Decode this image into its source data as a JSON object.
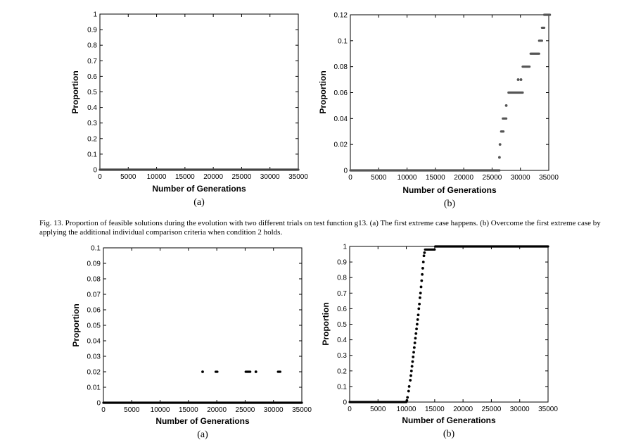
{
  "caption": "Fig. 13.   Proportion of feasible solutions during the evolution with two different trials on test function g13. (a) The first extreme case happens. (b) Overcome the first extreme case by applying the additional individual comparison criteria when condition 2 holds.",
  "chart_data": [
    {
      "type": "scatter",
      "panel_label": "(a)",
      "xlabel": "Number of Generations",
      "ylabel": "Proportion",
      "xlim": [
        0,
        35000
      ],
      "ylim": [
        0,
        1
      ],
      "xticks": [
        0,
        5000,
        10000,
        15000,
        20000,
        25000,
        30000,
        35000
      ],
      "yticks": [
        0,
        0.1,
        0.2,
        0.3,
        0.4,
        0.5,
        0.6,
        0.7,
        0.8,
        0.9,
        1
      ],
      "ytick_labels": [
        "0",
        "0.1",
        "0.2",
        "0.3",
        "0.4",
        "0.5",
        "0.6",
        "0.7",
        "0.8",
        "0.9",
        "1"
      ],
      "marker_color": "#444444",
      "segments": [
        {
          "x0": 0,
          "x1": 35000,
          "y": 0
        }
      ],
      "points": []
    },
    {
      "type": "scatter",
      "panel_label": "(b)",
      "xlabel": "Number of Generations",
      "ylabel": "Proportion",
      "xlim": [
        0,
        35000
      ],
      "ylim": [
        0,
        0.12
      ],
      "xticks": [
        0,
        5000,
        10000,
        15000,
        20000,
        25000,
        30000,
        35000
      ],
      "yticks": [
        0,
        0.02,
        0.04,
        0.06,
        0.08,
        0.1,
        0.12
      ],
      "ytick_labels": [
        "0",
        "0.02",
        "0.04",
        "0.06",
        "0.08",
        "0.1",
        "0.12"
      ],
      "marker_color": "#555555",
      "segments": [
        {
          "x0": 0,
          "x1": 26300,
          "y": 0
        },
        {
          "x0": 26600,
          "x1": 27000,
          "y": 0.03
        },
        {
          "x0": 26900,
          "x1": 27500,
          "y": 0.04
        },
        {
          "x0": 27900,
          "x1": 30400,
          "y": 0.06
        },
        {
          "x0": 30400,
          "x1": 31600,
          "y": 0.08
        },
        {
          "x0": 31800,
          "x1": 33300,
          "y": 0.09
        },
        {
          "x0": 33300,
          "x1": 33800,
          "y": 0.1
        },
        {
          "x0": 33800,
          "x1": 34200,
          "y": 0.11
        },
        {
          "x0": 34200,
          "x1": 35200,
          "y": 0.12
        }
      ],
      "points": [
        {
          "x": 26300,
          "y": 0.01
        },
        {
          "x": 26400,
          "y": 0.02
        },
        {
          "x": 27500,
          "y": 0.05
        },
        {
          "x": 29600,
          "y": 0.07
        },
        {
          "x": 30100,
          "y": 0.07
        }
      ]
    },
    {
      "type": "scatter",
      "panel_label": "(a)",
      "xlabel": "Number of Generations",
      "ylabel": "Proportion",
      "xlim": [
        0,
        35000
      ],
      "ylim": [
        0,
        0.1
      ],
      "xticks": [
        0,
        5000,
        10000,
        15000,
        20000,
        25000,
        30000,
        35000
      ],
      "yticks": [
        0,
        0.01,
        0.02,
        0.03,
        0.04,
        0.05,
        0.06,
        0.07,
        0.08,
        0.09,
        0.1
      ],
      "ytick_labels": [
        "0",
        "0.01",
        "0.02",
        "0.03",
        "0.04",
        "0.05",
        "0.06",
        "0.07",
        "0.08",
        "0.09",
        "0.1"
      ],
      "marker_color": "#000000",
      "segments": [
        {
          "x0": 0,
          "x1": 35000,
          "y": 0
        },
        {
          "x0": 19800,
          "x1": 20100,
          "y": 0.02
        },
        {
          "x0": 25100,
          "x1": 25900,
          "y": 0.02
        },
        {
          "x0": 30800,
          "x1": 31200,
          "y": 0.02
        }
      ],
      "points": [
        {
          "x": 17500,
          "y": 0.02
        },
        {
          "x": 26900,
          "y": 0.02
        }
      ]
    },
    {
      "type": "scatter",
      "panel_label": "(b)",
      "xlabel": "Number of Generations",
      "ylabel": "Proportion",
      "xlim": [
        0,
        35000
      ],
      "ylim": [
        0,
        1
      ],
      "xticks": [
        0,
        5000,
        10000,
        15000,
        20000,
        25000,
        30000,
        35000
      ],
      "yticks": [
        0,
        0.1,
        0.2,
        0.3,
        0.4,
        0.5,
        0.6,
        0.7,
        0.8,
        0.9,
        1
      ],
      "ytick_labels": [
        "0",
        "0.1",
        "0.2",
        "0.3",
        "0.4",
        "0.5",
        "0.6",
        "0.7",
        "0.8",
        "0.9",
        "1"
      ],
      "marker_color": "#000000",
      "segments": [
        {
          "x0": 0,
          "x1": 10000,
          "y": 0
        },
        {
          "x0": 13300,
          "x1": 15000,
          "y": 0.98
        },
        {
          "x0": 15100,
          "x1": 35000,
          "y": 1
        }
      ],
      "points": [
        {
          "x": 10100,
          "y": 0.01
        },
        {
          "x": 10200,
          "y": 0.03
        },
        {
          "x": 10400,
          "y": 0.07
        },
        {
          "x": 10500,
          "y": 0.1
        },
        {
          "x": 10700,
          "y": 0.14
        },
        {
          "x": 10800,
          "y": 0.17
        },
        {
          "x": 10900,
          "y": 0.2
        },
        {
          "x": 11000,
          "y": 0.23
        },
        {
          "x": 11100,
          "y": 0.26
        },
        {
          "x": 11200,
          "y": 0.29
        },
        {
          "x": 11300,
          "y": 0.32
        },
        {
          "x": 11400,
          "y": 0.35
        },
        {
          "x": 11500,
          "y": 0.38
        },
        {
          "x": 11600,
          "y": 0.41
        },
        {
          "x": 11700,
          "y": 0.44
        },
        {
          "x": 11800,
          "y": 0.47
        },
        {
          "x": 11900,
          "y": 0.5
        },
        {
          "x": 12000,
          "y": 0.53
        },
        {
          "x": 12100,
          "y": 0.56
        },
        {
          "x": 12200,
          "y": 0.6
        },
        {
          "x": 12300,
          "y": 0.63
        },
        {
          "x": 12400,
          "y": 0.67
        },
        {
          "x": 12500,
          "y": 0.7
        },
        {
          "x": 12600,
          "y": 0.74
        },
        {
          "x": 12700,
          "y": 0.78
        },
        {
          "x": 12800,
          "y": 0.82
        },
        {
          "x": 12900,
          "y": 0.86
        },
        {
          "x": 13000,
          "y": 0.9
        },
        {
          "x": 13100,
          "y": 0.94
        },
        {
          "x": 13200,
          "y": 0.96
        }
      ]
    }
  ]
}
